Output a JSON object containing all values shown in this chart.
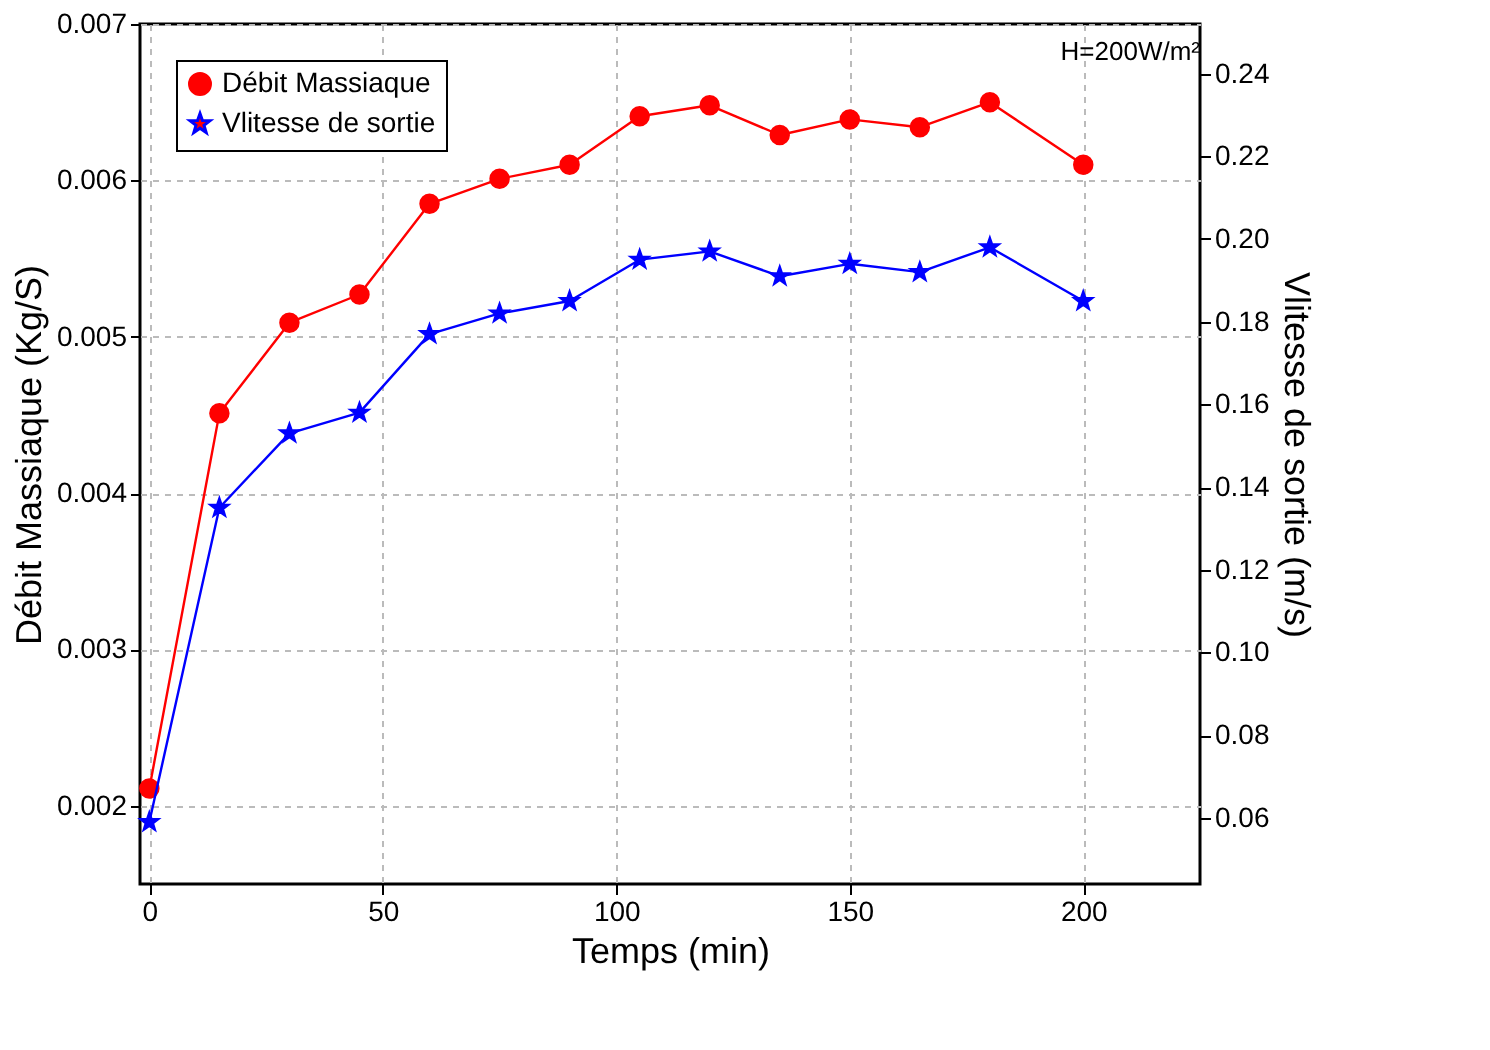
{
  "chart_data": {
    "type": "line",
    "xlabel": "Temps (min)",
    "ylabel": "Débit Massiaque (Kg/S)",
    "y2label": "Vlitesse de sortie (m/s)",
    "x": [
      0,
      15,
      30,
      45,
      60,
      75,
      90,
      105,
      120,
      135,
      150,
      165,
      180,
      200
    ],
    "series": [
      {
        "name": "Débit Massiaque",
        "color": "#ff0000",
        "marker": "circle",
        "values": [
          0.00211,
          0.00451,
          0.00509,
          0.00527,
          0.00585,
          0.00601,
          0.0061,
          0.00641,
          0.00648,
          0.00629,
          0.00639,
          0.00634,
          0.0065,
          0.0061
        ]
      },
      {
        "name": "Vlitesse de sortie",
        "color": "#0000ff",
        "marker": "star",
        "axis": "y2",
        "values": [
          0.059,
          0.135,
          0.153,
          0.158,
          0.177,
          0.182,
          0.185,
          0.195,
          0.197,
          0.191,
          0.194,
          0.192,
          0.198,
          0.185
        ]
      }
    ],
    "xlim": [
      -2,
      225
    ],
    "xticks": [
      0,
      50,
      100,
      150,
      200
    ],
    "ylim": [
      0.0015,
      0.007
    ],
    "yticks": [
      0.002,
      0.003,
      0.004,
      0.005,
      0.006,
      0.007
    ],
    "y2lim": [
      0.044,
      0.252
    ],
    "y2ticks": [
      0.06,
      0.08,
      {
        "value": 0.1,
        "label": "0.10"
      },
      0.12,
      0.14,
      0.16,
      0.18,
      {
        "value": 0.2,
        "label": "0.20"
      },
      0.22,
      0.24
    ],
    "annotations": [
      "H=200W/m²"
    ],
    "grid": true,
    "legend": "top left",
    "line_style": "solid"
  }
}
